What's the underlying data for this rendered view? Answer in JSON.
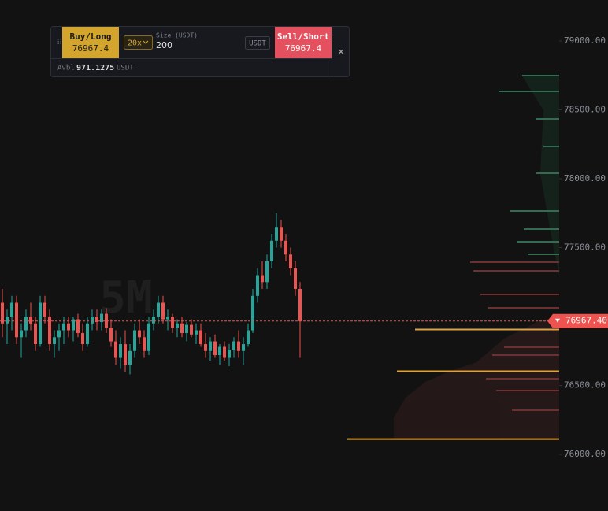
{
  "order_panel": {
    "buy_label": "Buy/Long",
    "buy_price": "76967.4",
    "leverage": "20x",
    "size_label": "Size (USDT)",
    "size_value": "200",
    "size_unit": "USDT",
    "sell_label": "Sell/Short",
    "sell_price": "76967.4",
    "avbl_label": "Avbl",
    "avbl_value": "971.1275",
    "avbl_unit": "USDT"
  },
  "chart_data": {
    "type": "candlestick",
    "watermark": "5M",
    "ylim": [
      75589,
      79297
    ],
    "yticks": [
      {
        "value": 76000,
        "label": "76000.00"
      },
      {
        "value": 76500,
        "label": "76500.00"
      },
      {
        "value": 77500,
        "label": "77500.00"
      },
      {
        "value": 78000,
        "label": "78000.00"
      },
      {
        "value": 78500,
        "label": "78500.00"
      },
      {
        "value": 79000,
        "label": "79000.00"
      }
    ],
    "up_color": "#26a69a",
    "down_color": "#ef5350",
    "last_price": {
      "value": 76967.4,
      "label": "76967.40"
    },
    "levels": [
      76906,
      76603,
      76111
    ],
    "level_color": "#e0a03a",
    "ohlc": [
      [
        77100,
        77200,
        76850,
        76950
      ],
      [
        76950,
        77050,
        76800,
        77000
      ],
      [
        77000,
        77150,
        76900,
        77100
      ],
      [
        77100,
        77150,
        76800,
        76850
      ],
      [
        76850,
        76950,
        76700,
        76900
      ],
      [
        76900,
        77050,
        76850,
        77000
      ],
      [
        77000,
        77100,
        76900,
        76950
      ],
      [
        76950,
        77000,
        76750,
        76800
      ],
      [
        76800,
        77150,
        76780,
        77100
      ],
      [
        77100,
        77150,
        76950,
        77000
      ],
      [
        77000,
        77050,
        76750,
        76800
      ],
      [
        76800,
        76900,
        76700,
        76850
      ],
      [
        76850,
        76950,
        76750,
        76900
      ],
      [
        76900,
        77000,
        76800,
        76950
      ],
      [
        76950,
        77000,
        76850,
        76900
      ],
      [
        76900,
        77000,
        76820,
        76980
      ],
      [
        76980,
        77020,
        76850,
        76880
      ],
      [
        76880,
        76950,
        76750,
        76800
      ],
      [
        76800,
        77000,
        76780,
        76950
      ],
      [
        76950,
        77050,
        76900,
        77000
      ],
      [
        77000,
        77050,
        76900,
        76960
      ],
      [
        76960,
        77050,
        76900,
        77020
      ],
      [
        77020,
        77060,
        76880,
        76920
      ],
      [
        76920,
        76980,
        76780,
        76820
      ],
      [
        76820,
        76900,
        76650,
        76700
      ],
      [
        76700,
        76850,
        76620,
        76800
      ],
      [
        76800,
        76900,
        76600,
        76650
      ],
      [
        76650,
        76800,
        76580,
        76750
      ],
      [
        76750,
        76950,
        76700,
        76900
      ],
      [
        76900,
        76980,
        76800,
        76850
      ],
      [
        76850,
        76900,
        76700,
        76750
      ],
      [
        76750,
        77000,
        76720,
        76950
      ],
      [
        76950,
        77050,
        76900,
        77000
      ],
      [
        77000,
        77150,
        76950,
        77100
      ],
      [
        77100,
        77150,
        76950,
        76980
      ],
      [
        76980,
        77050,
        76900,
        77000
      ],
      [
        77000,
        77020,
        76880,
        76920
      ],
      [
        76920,
        76980,
        76850,
        76950
      ],
      [
        76950,
        77000,
        76850,
        76880
      ],
      [
        76880,
        76960,
        76820,
        76940
      ],
      [
        76940,
        76980,
        76850,
        76870
      ],
      [
        76870,
        76950,
        76800,
        76900
      ],
      [
        76900,
        76950,
        76780,
        76800
      ],
      [
        76800,
        76880,
        76700,
        76750
      ],
      [
        76750,
        76850,
        76680,
        76820
      ],
      [
        76820,
        76870,
        76700,
        76720
      ],
      [
        76720,
        76800,
        76650,
        76780
      ],
      [
        76780,
        76820,
        76680,
        76700
      ],
      [
        76700,
        76800,
        76640,
        76760
      ],
      [
        76760,
        76850,
        76700,
        76820
      ],
      [
        76820,
        76900,
        76700,
        76750
      ],
      [
        76750,
        76850,
        76650,
        76800
      ],
      [
        76800,
        76950,
        76780,
        76900
      ],
      [
        76900,
        77200,
        76880,
        77150
      ],
      [
        77150,
        77350,
        77100,
        77300
      ],
      [
        77300,
        77400,
        77200,
        77250
      ],
      [
        77250,
        77450,
        77200,
        77400
      ],
      [
        77400,
        77600,
        77350,
        77550
      ],
      [
        77550,
        77750,
        77500,
        77650
      ],
      [
        77650,
        77700,
        77500,
        77550
      ],
      [
        77550,
        77600,
        77400,
        77450
      ],
      [
        77450,
        77500,
        77300,
        77350
      ],
      [
        77350,
        77400,
        77150,
        77200
      ],
      [
        77200,
        77250,
        76700,
        76967.4
      ]
    ]
  }
}
